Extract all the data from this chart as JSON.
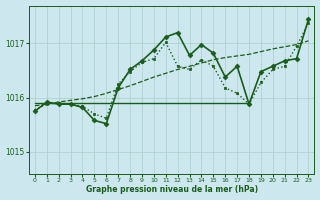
{
  "title": "",
  "xlabel": "Graphe pression niveau de la mer (hPa)",
  "ylabel": "",
  "bg_color": "#cce8ee",
  "grid_color": "#aacccc",
  "line_color": "#1a5c1a",
  "marker_color": "#1a5c1a",
  "text_color": "#1a5c1a",
  "xlabel_color": "#1a5c1a",
  "ylim": [
    1014.6,
    1017.7
  ],
  "yticks": [
    1015,
    1016,
    1017
  ],
  "xlim": [
    -0.5,
    23.5
  ],
  "xticks": [
    0,
    1,
    2,
    3,
    4,
    5,
    6,
    7,
    8,
    9,
    10,
    11,
    12,
    13,
    14,
    15,
    16,
    17,
    18,
    19,
    20,
    21,
    22,
    23
  ],
  "series": [
    {
      "x": [
        0,
        18
      ],
      "y": [
        1015.9,
        1015.9
      ],
      "style": "solid",
      "lw": 1.0,
      "marker": null,
      "markersize": 0
    },
    {
      "x": [
        0,
        1,
        2,
        3,
        4,
        5,
        6,
        7,
        8,
        9,
        10,
        11,
        12,
        13,
        14,
        15,
        16,
        17,
        18,
        19,
        20,
        21,
        22,
        23
      ],
      "y": [
        1015.85,
        1015.88,
        1015.92,
        1015.95,
        1015.98,
        1016.02,
        1016.08,
        1016.15,
        1016.22,
        1016.3,
        1016.38,
        1016.45,
        1016.52,
        1016.58,
        1016.64,
        1016.7,
        1016.74,
        1016.77,
        1016.8,
        1016.85,
        1016.9,
        1016.94,
        1016.98,
        1017.05
      ],
      "style": "dashed",
      "lw": 0.9,
      "marker": null,
      "markersize": 0
    },
    {
      "x": [
        0,
        1,
        2,
        3,
        4,
        5,
        6,
        7,
        8,
        9,
        10,
        11,
        12,
        13,
        14,
        15,
        16,
        17,
        18,
        19,
        20,
        21,
        22,
        23
      ],
      "y": [
        1015.78,
        1015.88,
        1015.9,
        1015.88,
        1015.84,
        1015.7,
        1015.62,
        1016.25,
        1016.48,
        1016.65,
        1016.72,
        1017.02,
        1016.58,
        1016.52,
        1016.7,
        1016.58,
        1016.18,
        1016.08,
        1015.88,
        1016.28,
        1016.52,
        1016.58,
        1016.95,
        1017.38
      ],
      "style": "dotted",
      "lw": 1.0,
      "marker": "s",
      "markersize": 2.0
    },
    {
      "x": [
        0,
        1,
        2,
        3,
        4,
        5,
        6,
        7,
        8,
        9,
        10,
        11,
        12,
        13,
        14,
        15,
        16,
        17,
        18,
        19,
        20,
        21,
        22,
        23
      ],
      "y": [
        1015.75,
        1015.92,
        1015.88,
        1015.88,
        1015.82,
        1015.58,
        1015.52,
        1016.18,
        1016.52,
        1016.68,
        1016.88,
        1017.12,
        1017.2,
        1016.78,
        1016.98,
        1016.82,
        1016.38,
        1016.58,
        1015.88,
        1016.48,
        1016.58,
        1016.68,
        1016.72,
        1017.45
      ],
      "style": "solid",
      "lw": 1.2,
      "marker": "D",
      "markersize": 2.5
    }
  ]
}
